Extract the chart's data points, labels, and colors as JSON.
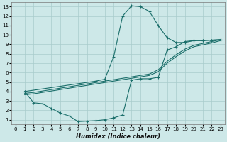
{
  "bg_color": "#cde8e8",
  "line_color": "#1a6e6a",
  "xlabel": "Humidex (Indice chaleur)",
  "xlim": [
    -0.5,
    23.5
  ],
  "ylim": [
    0.5,
    13.5
  ],
  "xticks": [
    0,
    1,
    2,
    3,
    4,
    5,
    6,
    7,
    8,
    9,
    10,
    11,
    12,
    13,
    14,
    15,
    16,
    17,
    18,
    19,
    20,
    21,
    22,
    23
  ],
  "yticks": [
    1,
    2,
    3,
    4,
    5,
    6,
    7,
    8,
    9,
    10,
    11,
    12,
    13
  ],
  "upper_x": [
    1,
    9,
    10,
    11,
    12,
    13,
    14,
    15,
    16,
    17,
    18,
    19,
    20,
    21,
    22,
    23
  ],
  "upper_y": [
    4.0,
    5.1,
    5.3,
    7.7,
    12.0,
    13.1,
    13.0,
    12.5,
    11.0,
    9.7,
    9.2,
    9.2,
    9.4,
    9.4,
    9.45,
    9.5
  ],
  "lower_x": [
    1,
    2,
    3,
    4,
    5,
    6,
    7,
    8,
    9,
    10,
    11,
    12,
    13,
    14,
    15,
    16,
    17,
    18,
    19,
    20,
    21,
    22,
    23
  ],
  "lower_y": [
    4.0,
    2.8,
    2.7,
    2.2,
    1.7,
    1.4,
    0.8,
    0.85,
    0.9,
    1.0,
    1.2,
    1.5,
    5.2,
    5.35,
    5.35,
    5.5,
    8.4,
    8.75,
    9.3,
    9.4,
    9.4,
    9.45,
    9.5
  ],
  "lin1_x": [
    1,
    2,
    3,
    4,
    5,
    6,
    7,
    8,
    9,
    10,
    11,
    12,
    13,
    14,
    15,
    16,
    17,
    18,
    19,
    20,
    21,
    22,
    23
  ],
  "lin1_y": [
    3.8,
    3.9,
    4.05,
    4.2,
    4.35,
    4.5,
    4.65,
    4.8,
    4.95,
    5.1,
    5.25,
    5.4,
    5.55,
    5.7,
    5.85,
    6.3,
    7.2,
    7.9,
    8.5,
    8.9,
    9.1,
    9.3,
    9.5
  ],
  "lin2_x": [
    1,
    2,
    3,
    4,
    5,
    6,
    7,
    8,
    9,
    10,
    11,
    12,
    13,
    14,
    15,
    16,
    17,
    18,
    19,
    20,
    21,
    22,
    23
  ],
  "lin2_y": [
    3.65,
    3.75,
    3.9,
    4.05,
    4.2,
    4.35,
    4.5,
    4.65,
    4.8,
    4.95,
    5.1,
    5.25,
    5.4,
    5.55,
    5.7,
    6.1,
    7.0,
    7.7,
    8.3,
    8.75,
    8.95,
    9.15,
    9.4
  ]
}
